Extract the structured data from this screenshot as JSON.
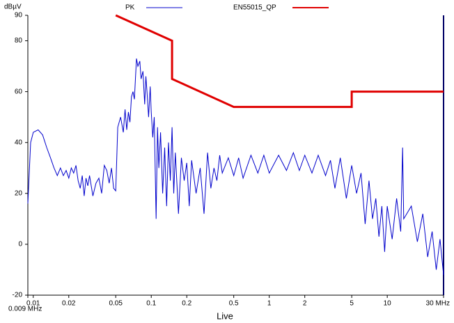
{
  "chart_data": {
    "type": "line",
    "y_label": "dBµV",
    "x_label": "Live",
    "log_x": true,
    "xlim": [
      0.009,
      30
    ],
    "ylim": [
      -20,
      90
    ],
    "xticks": [
      {
        "value": 0.009,
        "label": "0.009 MHz"
      },
      0.01,
      0.02,
      0.05,
      0.1,
      0.2,
      0.5,
      1,
      2,
      5,
      10,
      {
        "value": 30,
        "label": "30 MHz"
      }
    ],
    "yticks": [
      -20,
      0,
      20,
      40,
      60,
      80,
      90
    ],
    "series": [
      {
        "name": "PK",
        "color": "#0000cc",
        "x": [
          0.009,
          0.0095,
          0.01,
          0.011,
          0.012,
          0.013,
          0.014,
          0.015,
          0.016,
          0.017,
          0.018,
          0.019,
          0.02,
          0.021,
          0.022,
          0.023,
          0.024,
          0.025,
          0.026,
          0.027,
          0.028,
          0.029,
          0.03,
          0.032,
          0.034,
          0.036,
          0.038,
          0.04,
          0.042,
          0.044,
          0.046,
          0.048,
          0.05,
          0.052,
          0.055,
          0.058,
          0.06,
          0.062,
          0.064,
          0.066,
          0.068,
          0.07,
          0.072,
          0.075,
          0.077,
          0.08,
          0.082,
          0.085,
          0.088,
          0.09,
          0.092,
          0.095,
          0.098,
          0.1,
          0.103,
          0.106,
          0.11,
          0.113,
          0.116,
          0.12,
          0.125,
          0.13,
          0.135,
          0.14,
          0.145,
          0.15,
          0.155,
          0.16,
          0.17,
          0.18,
          0.19,
          0.2,
          0.21,
          0.22,
          0.24,
          0.26,
          0.28,
          0.3,
          0.32,
          0.34,
          0.36,
          0.38,
          0.4,
          0.45,
          0.5,
          0.55,
          0.6,
          0.7,
          0.8,
          0.9,
          1,
          1.2,
          1.4,
          1.6,
          1.8,
          2,
          2.3,
          2.6,
          3,
          3.3,
          3.6,
          4,
          4.5,
          5,
          5.5,
          6,
          6.5,
          7,
          7.5,
          8,
          8.5,
          9,
          9.5,
          10,
          11,
          12,
          13,
          13.5,
          13.8,
          16,
          18,
          20,
          22,
          24,
          26,
          28,
          30
        ],
        "values": [
          16,
          40,
          44,
          45,
          43,
          38,
          34,
          30,
          27,
          30,
          27,
          29,
          26,
          30,
          28,
          31,
          25,
          22,
          27,
          19,
          26,
          23,
          27,
          19,
          24,
          26,
          20,
          31,
          29,
          24,
          30,
          22,
          21,
          46,
          50,
          44,
          53,
          45,
          52,
          48,
          58,
          60,
          57,
          73,
          70,
          72,
          65,
          68,
          55,
          66,
          60,
          50,
          62,
          52,
          42,
          50,
          10,
          46,
          30,
          44,
          20,
          38,
          15,
          40,
          25,
          46,
          20,
          36,
          12,
          34,
          25,
          32,
          15,
          33,
          20,
          30,
          12,
          36,
          22,
          30,
          25,
          35,
          28,
          34,
          27,
          34,
          26,
          35,
          28,
          35,
          28,
          35,
          29,
          36,
          29,
          35,
          28,
          35,
          27,
          33,
          22,
          34,
          18,
          31,
          20,
          28,
          8,
          25,
          10,
          18,
          3,
          15,
          -3,
          15,
          2,
          18,
          5,
          38,
          10,
          15,
          1,
          12,
          -5,
          5,
          -10,
          2,
          -12
        ]
      },
      {
        "name": "EN55015_QP",
        "color": "#e00000",
        "x": [
          0.05,
          0.15,
          0.15,
          0.5,
          5,
          5,
          30
        ],
        "values": [
          90,
          80,
          65,
          54,
          54,
          60,
          60
        ]
      }
    ]
  }
}
